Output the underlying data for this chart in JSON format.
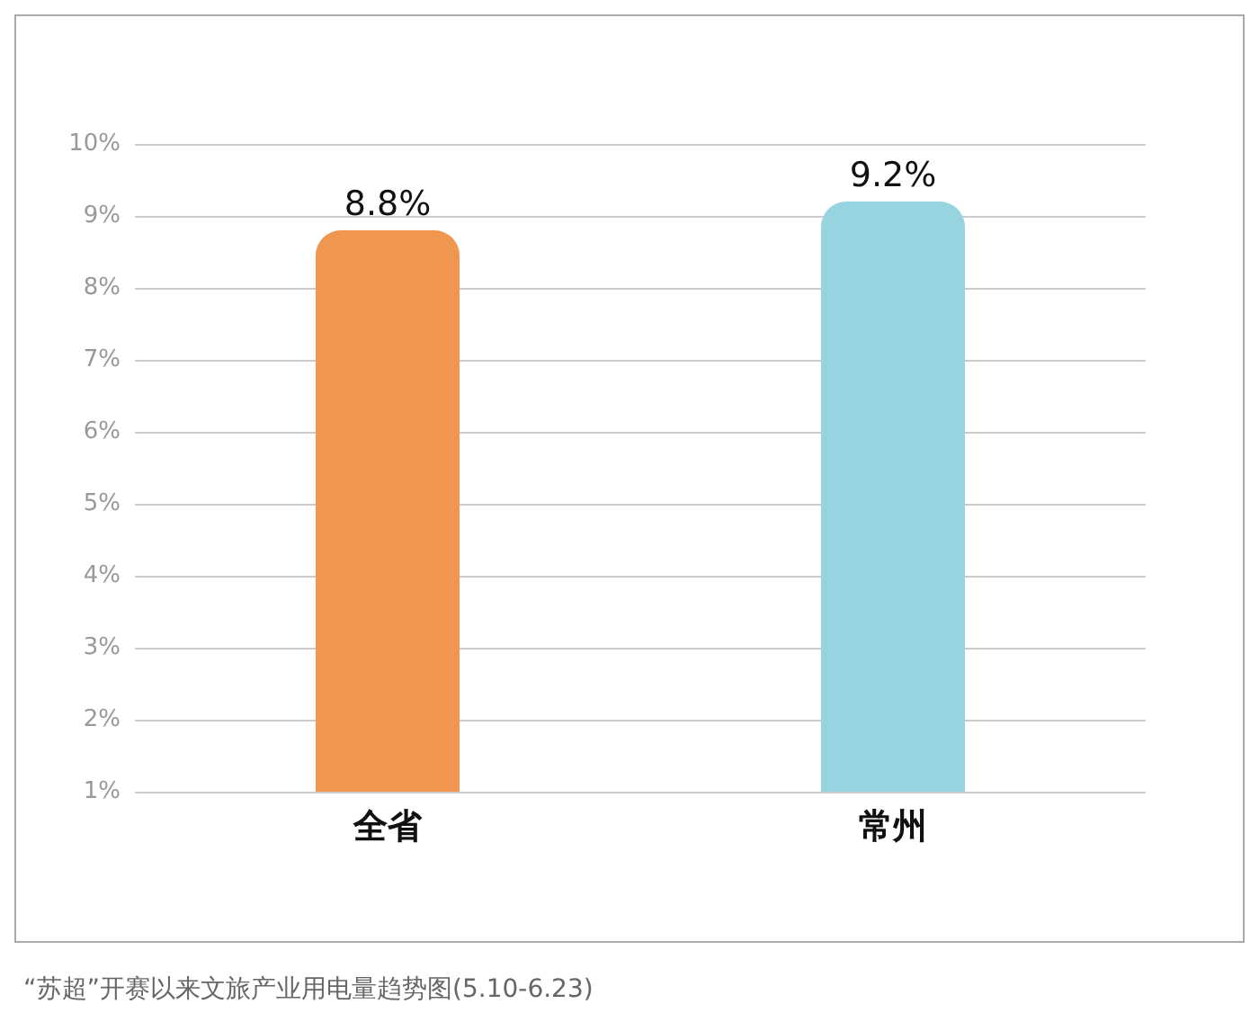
{
  "chart_data": {
    "type": "bar",
    "categories": [
      "全省",
      "常州"
    ],
    "values": [
      8.8,
      9.2
    ],
    "colors": [
      "#f0964f",
      "#98d3e0"
    ],
    "value_labels": [
      "8.8%",
      "9.2%"
    ],
    "ylim": [
      1,
      10
    ],
    "yticks": [
      {
        "value": 1,
        "label": "1%"
      },
      {
        "value": 2,
        "label": "2%"
      },
      {
        "value": 3,
        "label": "3%"
      },
      {
        "value": 4,
        "label": "4%"
      },
      {
        "value": 5,
        "label": "5%"
      },
      {
        "value": 6,
        "label": "6%"
      },
      {
        "value": 7,
        "label": "7%"
      },
      {
        "value": 8,
        "label": "8%"
      },
      {
        "value": 9,
        "label": "9%"
      },
      {
        "value": 10,
        "label": "10%"
      }
    ],
    "grid": "y",
    "annotations": [
      "“苏超”开赛以来文旅产业用电量趋势图(5.10-6.23)"
    ]
  }
}
